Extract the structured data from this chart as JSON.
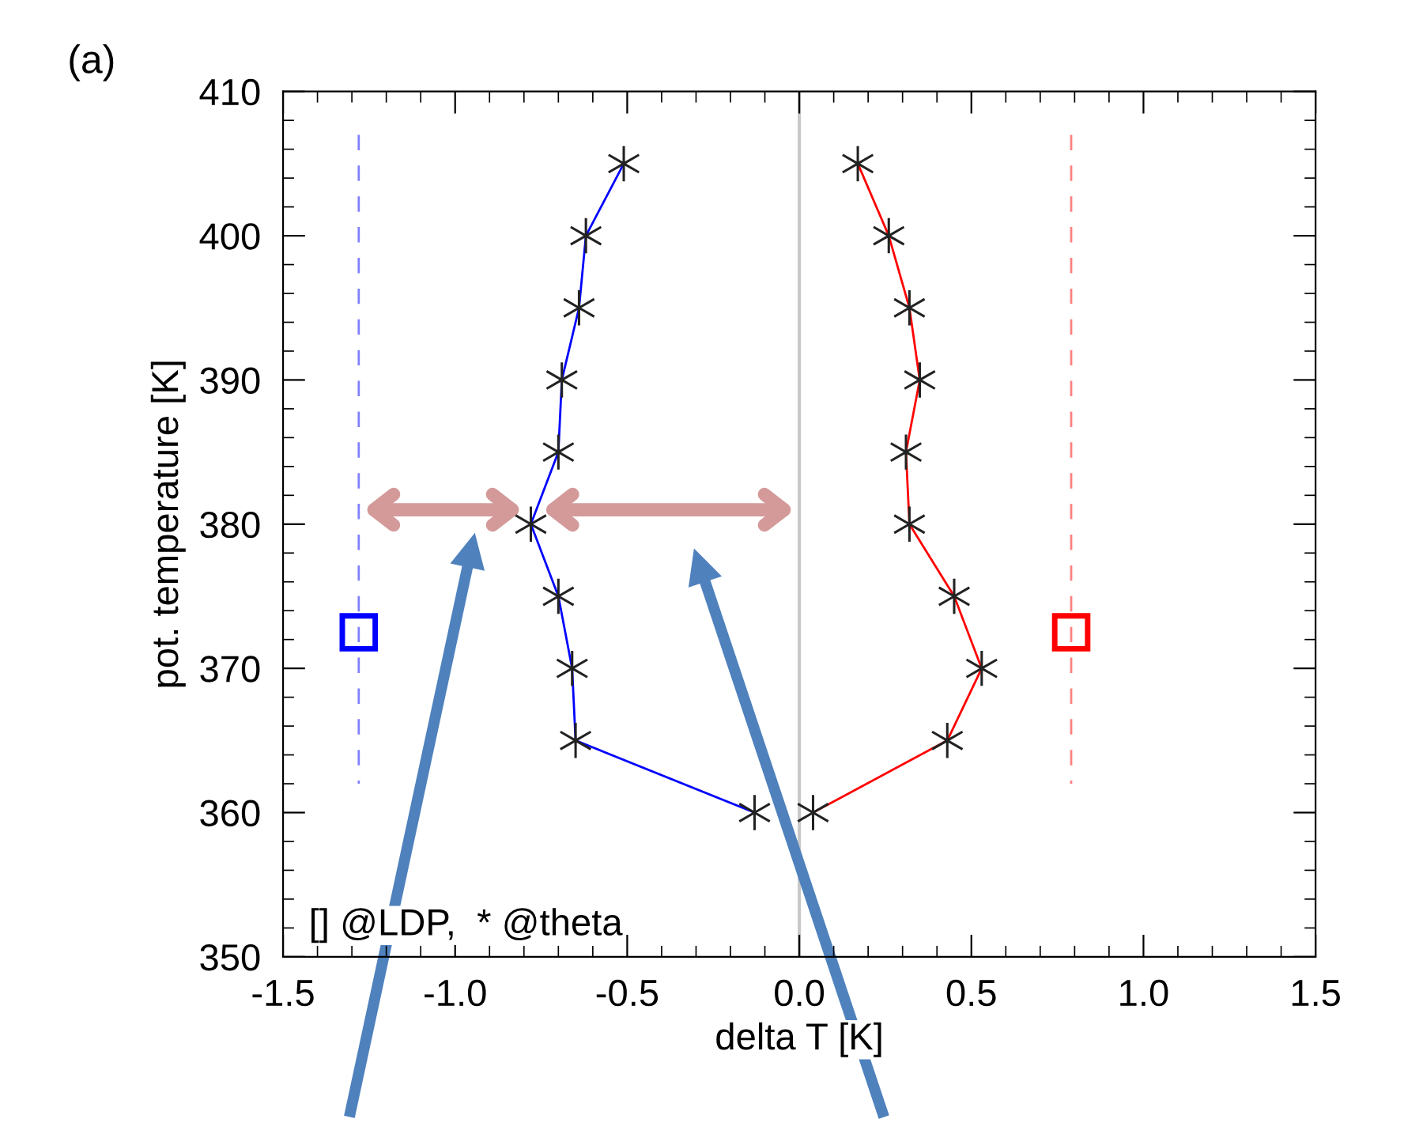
{
  "chart_data": {
    "type": "line",
    "xlabel": "delta T [K]",
    "ylabel": "pot. temperature [K]",
    "xlim": [
      -1.5,
      1.5
    ],
    "xticks": [
      {
        "value": -1.5,
        "label": "-1.5"
      },
      {
        "value": -1.0,
        "label": "-1.0"
      },
      {
        "value": -0.5,
        "label": "-0.5"
      },
      {
        "value": 0.0,
        "label": "0.0"
      },
      {
        "value": 0.5,
        "label": "0.5"
      },
      {
        "value": 1.0,
        "label": "1.0"
      },
      {
        "value": 1.5,
        "label": "1.5"
      }
    ],
    "ylim": [
      350,
      410
    ],
    "yticks": [
      350,
      360,
      370,
      380,
      390,
      400,
      410
    ],
    "grid": false,
    "legend": false,
    "series": [
      {
        "color": "#0000ff",
        "marker": "cross",
        "x": [
          -0.51,
          -0.62,
          -0.64,
          -0.69,
          -0.7,
          -0.78,
          -0.7,
          -0.66,
          -0.65,
          -0.13
        ],
        "values": [
          405,
          400,
          395,
          390,
          385,
          380,
          375,
          370,
          365,
          360
        ]
      },
      {
        "color": "#ff0000",
        "marker": "cross",
        "x": [
          0.17,
          0.26,
          0.32,
          0.35,
          0.31,
          0.32,
          0.45,
          0.53,
          0.43,
          0.04
        ],
        "values": [
          405,
          400,
          395,
          390,
          385,
          380,
          375,
          370,
          365,
          360
        ]
      },
      {
        "color": "#8080ff",
        "line_style": "dashed",
        "marker": "none",
        "x": [
          -1.28,
          -1.28
        ],
        "values": [
          407,
          362
        ]
      },
      {
        "color": "#ff8080",
        "line_style": "dashed",
        "marker": "none",
        "x": [
          0.79,
          0.79
        ],
        "values": [
          407,
          362
        ]
      },
      {
        "type": "scatter",
        "color": "#0000ff",
        "marker": "square",
        "x": [
          -1.28
        ],
        "values": [
          372.5
        ]
      },
      {
        "type": "scatter",
        "color": "#ff0000",
        "marker": "square",
        "x": [
          0.79
        ],
        "values": [
          372.5
        ]
      }
    ],
    "ref_lines": [
      {
        "axis": "x",
        "value": 0,
        "color": "#c8c8c8"
      }
    ],
    "annotations": [
      "(a)",
      "[] @LDP,  * @theta"
    ]
  }
}
